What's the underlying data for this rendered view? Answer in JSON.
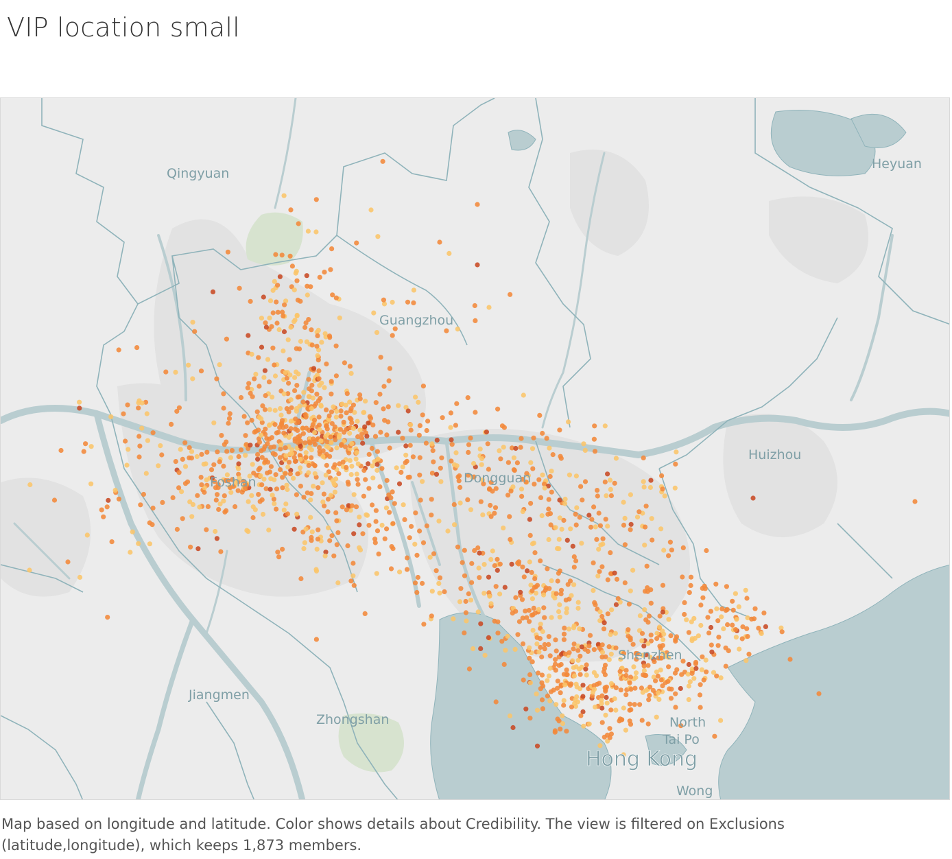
{
  "title": "VIP location small",
  "caption": {
    "line1": "Map based on longitude and latitude.  Color shows details about Credibility. The view is filtered on Exclusions",
    "line2": "(latitude,longitude), which keeps 1,873 members."
  },
  "colors": {
    "land": "#ececec",
    "urban": "#e2e2e2",
    "water": "#b9cdd0",
    "border": "#8fb3ba",
    "park": "#d7e3cf",
    "label": "#7f9fa6",
    "credibility_low": "#fbc56a",
    "credibility_mid": "#f3893a",
    "credibility_high": "#c84a24"
  },
  "map": {
    "cities": [
      {
        "name": "Qingyuan",
        "size": "small"
      },
      {
        "name": "Heyuan",
        "size": "small"
      },
      {
        "name": "Guangzhou",
        "size": "small"
      },
      {
        "name": "Huizhou",
        "size": "small"
      },
      {
        "name": "Foshan",
        "size": "small"
      },
      {
        "name": "Dongguan",
        "size": "small"
      },
      {
        "name": "Shenzhen",
        "size": "small"
      },
      {
        "name": "Jiangmen",
        "size": "small"
      },
      {
        "name": "Zhongshan",
        "size": "small"
      },
      {
        "name": "North",
        "size": "small"
      },
      {
        "name": "Tai Po",
        "size": "small"
      },
      {
        "name": "Hong Kong",
        "size": "large"
      },
      {
        "name": "Wong",
        "size": "small"
      }
    ],
    "members_shown": 1873
  }
}
